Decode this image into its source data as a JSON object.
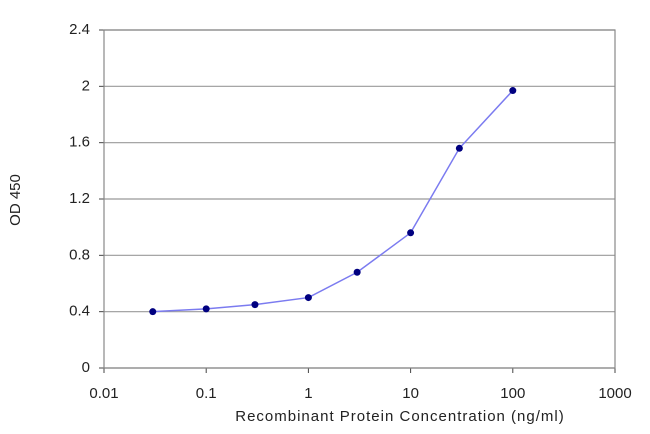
{
  "chart_data": {
    "type": "line",
    "x_label": "Recombinant Protein Concentration (ng/ml)",
    "y_label": "OD 450",
    "x": [
      0.03,
      0.1,
      0.3,
      1,
      3,
      10,
      30,
      100
    ],
    "values": [
      0.4,
      0.42,
      0.45,
      0.5,
      0.68,
      0.96,
      1.56,
      1.97
    ],
    "color": "#7b7bf0",
    "marker_color": "#000080",
    "xscale": "log",
    "xlim": [
      0.01,
      1000
    ],
    "xticks": [
      0.01,
      0.1,
      1,
      10,
      100,
      1000
    ],
    "ylim": [
      0,
      2.4
    ],
    "yticks": [
      0,
      0.4,
      0.8,
      1.2,
      1.6,
      2,
      2.4
    ],
    "grid": true
  }
}
